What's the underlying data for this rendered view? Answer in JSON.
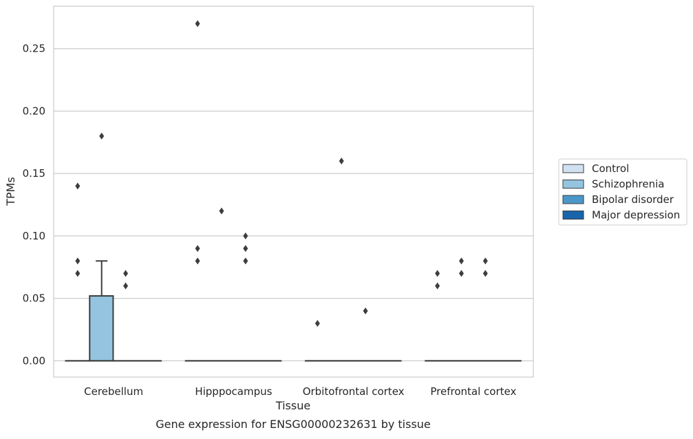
{
  "caption": "Gene expression for ENSG00000232631 by tissue",
  "chart_data": {
    "type": "box",
    "xlabel": "Tissue",
    "ylabel": "TPMs",
    "ylim": [
      -0.013,
      0.284
    ],
    "yticks": [
      "0.00",
      "0.05",
      "0.10",
      "0.15",
      "0.20",
      "0.25"
    ],
    "ytick_values": [
      0,
      0.05,
      0.1,
      0.15,
      0.2,
      0.25
    ],
    "grid": "horizontal",
    "legend_position": "right",
    "categories": [
      "Cerebellum",
      "Hipppocampus",
      "Orbitofrontal cortex",
      "Prefrontal cortex"
    ],
    "series": [
      {
        "name": "Control",
        "color": "#d0e1f2",
        "boxes": [
          {
            "q1": 0,
            "median": 0,
            "q3": 0,
            "whisker_low": 0,
            "whisker_high": 0,
            "outliers": [
              0.14,
              0.08,
              0.07
            ]
          },
          {
            "q1": 0,
            "median": 0,
            "q3": 0,
            "whisker_low": 0,
            "whisker_high": 0,
            "outliers": [
              0.27,
              0.09,
              0.08
            ]
          },
          {
            "q1": 0,
            "median": 0,
            "q3": 0,
            "whisker_low": 0,
            "whisker_high": 0,
            "outliers": [
              0.03
            ]
          },
          {
            "q1": 0,
            "median": 0,
            "q3": 0,
            "whisker_low": 0,
            "whisker_high": 0,
            "outliers": [
              0.07,
              0.06
            ]
          }
        ]
      },
      {
        "name": "Schizophrenia",
        "color": "#94c4df",
        "boxes": [
          {
            "q1": 0,
            "median": 0,
            "q3": 0.052,
            "whisker_low": 0,
            "whisker_high": 0.08,
            "outliers": [
              0.18
            ]
          },
          {
            "q1": 0,
            "median": 0,
            "q3": 0,
            "whisker_low": 0,
            "whisker_high": 0,
            "outliers": [
              0.12
            ]
          },
          {
            "q1": 0,
            "median": 0,
            "q3": 0,
            "whisker_low": 0,
            "whisker_high": 0,
            "outliers": [
              0.16
            ]
          },
          {
            "q1": 0,
            "median": 0,
            "q3": 0,
            "whisker_low": 0,
            "whisker_high": 0,
            "outliers": [
              0.08,
              0.07
            ]
          }
        ]
      },
      {
        "name": "Bipolar disorder",
        "color": "#4a98c9",
        "boxes": [
          {
            "q1": 0,
            "median": 0,
            "q3": 0,
            "whisker_low": 0,
            "whisker_high": 0,
            "outliers": [
              0.07,
              0.06
            ]
          },
          {
            "q1": 0,
            "median": 0,
            "q3": 0,
            "whisker_low": 0,
            "whisker_high": 0,
            "outliers": [
              0.1,
              0.09,
              0.08
            ]
          },
          {
            "q1": 0,
            "median": 0,
            "q3": 0,
            "whisker_low": 0,
            "whisker_high": 0,
            "outliers": [
              0.04
            ]
          },
          {
            "q1": 0,
            "median": 0,
            "q3": 0,
            "whisker_low": 0,
            "whisker_high": 0,
            "outliers": [
              0.08,
              0.07
            ]
          }
        ]
      },
      {
        "name": "Major depression",
        "color": "#1764ab",
        "boxes": [
          {
            "q1": 0,
            "median": 0,
            "q3": 0,
            "whisker_low": 0,
            "whisker_high": 0,
            "outliers": []
          },
          {
            "q1": 0,
            "median": 0,
            "q3": 0,
            "whisker_low": 0,
            "whisker_high": 0,
            "outliers": []
          },
          {
            "q1": 0,
            "median": 0,
            "q3": 0,
            "whisker_low": 0,
            "whisker_high": 0,
            "outliers": []
          },
          {
            "q1": 0,
            "median": 0,
            "q3": 0,
            "whisker_low": 0,
            "whisker_high": 0,
            "outliers": []
          }
        ]
      }
    ]
  }
}
